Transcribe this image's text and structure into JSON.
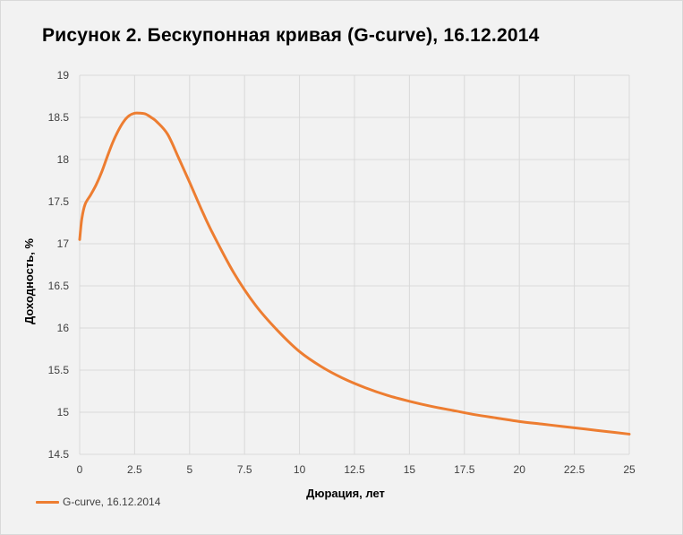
{
  "title": "Рисунок 2. Бесккупонная кривая (G-curve), 16.12.2014",
  "colors": {
    "series": "#ed7d31",
    "grid": "#d9d9d9",
    "background": "#f2f2f2",
    "text": "#404040"
  },
  "chart_data": {
    "type": "line",
    "title": "Рисунок 2. Бескупонная кривая (G-curve), 16.12.2014",
    "xlabel": "Дюрация, лет",
    "ylabel": "Доходность, %",
    "xlim": [
      0,
      25
    ],
    "ylim": [
      14.5,
      19
    ],
    "xticks": [
      "0",
      "2.5",
      "5",
      "7.5",
      "10",
      "12.5",
      "15",
      "17.5",
      "20",
      "22.5",
      "25"
    ],
    "yticks": [
      "14.5",
      "15",
      "15.5",
      "16",
      "16.5",
      "17",
      "17.5",
      "18",
      "18.5",
      "19"
    ],
    "grid": true,
    "legend_position": "bottom-left",
    "series": [
      {
        "name": "G-curve, 16.12.2014",
        "x": [
          0,
          0.1,
          0.25,
          0.5,
          0.75,
          1,
          1.25,
          1.5,
          1.75,
          2,
          2.25,
          2.5,
          2.75,
          3,
          3.25,
          3.5,
          4,
          4.5,
          5,
          5.5,
          6,
          7,
          8,
          9,
          10,
          11,
          12,
          13,
          14,
          15,
          16,
          17,
          18,
          19,
          20,
          21,
          22,
          23,
          24,
          25
        ],
        "y": [
          17.05,
          17.3,
          17.47,
          17.58,
          17.7,
          17.85,
          18.03,
          18.2,
          18.34,
          18.45,
          18.52,
          18.55,
          18.55,
          18.54,
          18.5,
          18.45,
          18.3,
          18.02,
          17.73,
          17.43,
          17.15,
          16.66,
          16.27,
          15.97,
          15.72,
          15.54,
          15.4,
          15.29,
          15.2,
          15.13,
          15.07,
          15.02,
          14.97,
          14.93,
          14.89,
          14.86,
          14.83,
          14.8,
          14.77,
          14.74
        ]
      }
    ]
  }
}
